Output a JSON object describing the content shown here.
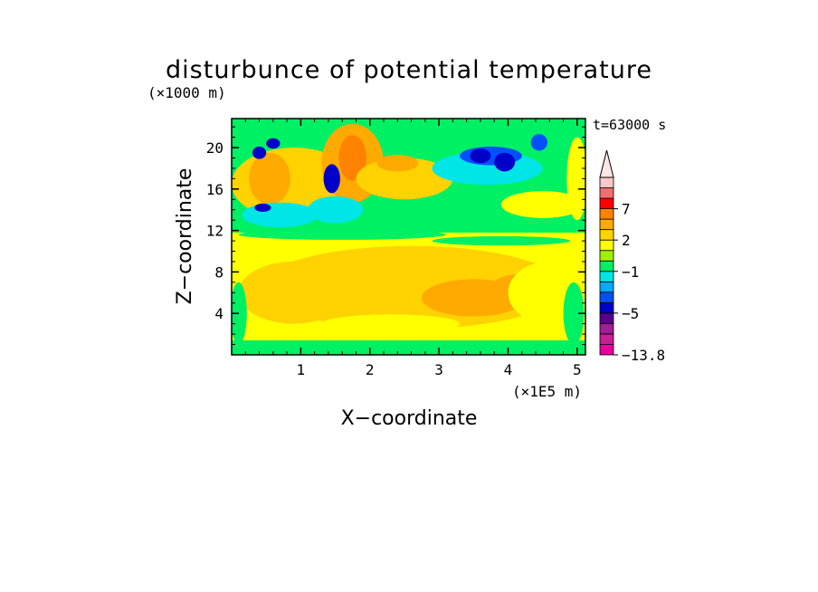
{
  "chart_data": {
    "type": "heatmap",
    "title": "disturbunce of potential temperature",
    "xlabel": "X−coordinate",
    "ylabel": "Z−coordinate",
    "x_unit": "(×1E5 m)",
    "y_unit": "(×1000 m)",
    "time_label": "t=63000 s",
    "x_ticks": [
      1,
      2,
      3,
      4,
      5
    ],
    "y_ticks": [
      4,
      8,
      12,
      16,
      20
    ],
    "xlim": [
      0,
      5.12
    ],
    "ylim": [
      0,
      22.8
    ],
    "colorbar": {
      "labels": [
        "7",
        "2",
        "−1",
        "−5",
        "−13.8"
      ],
      "label_values": [
        7,
        2,
        -1,
        -5,
        -13.8
      ],
      "levels": [
        -13.8,
        -11,
        -9,
        -7,
        -5,
        -4,
        -3,
        -2,
        -1,
        0,
        1,
        2,
        3,
        5,
        7,
        9,
        11
      ],
      "colors": [
        "#e600a0",
        "#c81e96",
        "#a01e96",
        "#5a008c",
        "#0000c8",
        "#0050ff",
        "#00aaff",
        "#00e6e6",
        "#00f064",
        "#a0f000",
        "#ffff00",
        "#ffd200",
        "#ffaa00",
        "#ff8200",
        "#ff0000",
        "#f06e6e",
        "#fac8c8"
      ],
      "extend": "max"
    },
    "fields": {
      "background_level": 0.2,
      "regions": [
        {
          "shape": "rect",
          "x": [
            0,
            5.12
          ],
          "y": [
            0,
            1.4
          ],
          "value": -0.5
        },
        {
          "shape": "rect",
          "x": [
            0,
            5.12
          ],
          "y": [
            1.4,
            11.8
          ],
          "value": 1.5
        },
        {
          "shape": "rect",
          "x": [
            0,
            5.12
          ],
          "y": [
            11.8,
            22.8
          ],
          "value": -0.5
        },
        {
          "shape": "ellipse",
          "cx": 2.6,
          "cy": 6.5,
          "rx": 2.2,
          "ry": 4.0,
          "value": 2.5
        },
        {
          "shape": "ellipse",
          "cx": 0.9,
          "cy": 6.0,
          "rx": 0.8,
          "ry": 3.0,
          "value": 2.5
        },
        {
          "shape": "ellipse",
          "cx": 3.5,
          "cy": 5.5,
          "rx": 0.75,
          "ry": 1.8,
          "value": 4.0
        },
        {
          "shape": "ellipse",
          "cx": 4.2,
          "cy": 6.5,
          "rx": 0.45,
          "ry": 1.3,
          "value": 3.5
        },
        {
          "shape": "ellipse",
          "cx": 2.3,
          "cy": 3.0,
          "rx": 1.0,
          "ry": 0.9,
          "value": 1.5
        },
        {
          "shape": "ellipse",
          "cx": 1.6,
          "cy": 11.6,
          "rx": 1.5,
          "ry": 0.5,
          "value": -0.5
        },
        {
          "shape": "ellipse",
          "cx": 3.9,
          "cy": 11.0,
          "rx": 1.0,
          "ry": 0.45,
          "value": -0.5
        },
        {
          "shape": "ellipse",
          "cx": 0.9,
          "cy": 16.5,
          "rx": 0.9,
          "ry": 3.5,
          "value": 2.5
        },
        {
          "shape": "ellipse",
          "cx": 0.55,
          "cy": 17.0,
          "rx": 0.3,
          "ry": 2.5,
          "value": 4.0
        },
        {
          "shape": "ellipse",
          "cx": 1.75,
          "cy": 18.5,
          "rx": 0.45,
          "ry": 3.8,
          "value": 3.5
        },
        {
          "shape": "ellipse",
          "cx": 1.75,
          "cy": 19.0,
          "rx": 0.2,
          "ry": 2.2,
          "value": 6.0
        },
        {
          "shape": "ellipse",
          "cx": 2.5,
          "cy": 17.0,
          "rx": 0.7,
          "ry": 2.0,
          "value": 2.5
        },
        {
          "shape": "ellipse",
          "cx": 2.4,
          "cy": 18.5,
          "rx": 0.3,
          "ry": 0.8,
          "value": 4.0
        },
        {
          "shape": "ellipse",
          "cx": 0.7,
          "cy": 13.5,
          "rx": 0.55,
          "ry": 1.2,
          "value": -1.5
        },
        {
          "shape": "ellipse",
          "cx": 1.5,
          "cy": 14.0,
          "rx": 0.4,
          "ry": 1.3,
          "value": -1.5
        },
        {
          "shape": "ellipse",
          "cx": 3.7,
          "cy": 18.0,
          "rx": 0.8,
          "ry": 1.6,
          "value": -1.5
        },
        {
          "shape": "ellipse",
          "cx": 3.75,
          "cy": 19.2,
          "rx": 0.45,
          "ry": 0.9,
          "value": -3.5
        },
        {
          "shape": "ellipse",
          "cx": 4.45,
          "cy": 20.5,
          "rx": 0.12,
          "ry": 0.8,
          "value": -3.5
        },
        {
          "shape": "ellipse",
          "cx": 1.45,
          "cy": 17.0,
          "rx": 0.12,
          "ry": 1.4,
          "value": -4.5
        },
        {
          "shape": "ellipse",
          "cx": 0.4,
          "cy": 19.5,
          "rx": 0.1,
          "ry": 0.6,
          "value": -4.5
        },
        {
          "shape": "ellipse",
          "cx": 0.6,
          "cy": 20.4,
          "rx": 0.1,
          "ry": 0.5,
          "value": -4.5
        },
        {
          "shape": "ellipse",
          "cx": 0.45,
          "cy": 14.2,
          "rx": 0.12,
          "ry": 0.4,
          "value": -4.5
        },
        {
          "shape": "ellipse",
          "cx": 3.6,
          "cy": 19.2,
          "rx": 0.15,
          "ry": 0.7,
          "value": -4.5
        },
        {
          "shape": "ellipse",
          "cx": 3.95,
          "cy": 18.6,
          "rx": 0.15,
          "ry": 0.9,
          "value": -4.5
        },
        {
          "shape": "ellipse",
          "cx": 4.6,
          "cy": 6.0,
          "rx": 0.6,
          "ry": 3.0,
          "value": 1.5
        },
        {
          "shape": "ellipse",
          "cx": 4.95,
          "cy": 4.0,
          "rx": 0.15,
          "ry": 3.0,
          "value": -0.5
        },
        {
          "shape": "ellipse",
          "cx": 0.1,
          "cy": 4.0,
          "rx": 0.12,
          "ry": 3.0,
          "value": -0.5
        },
        {
          "shape": "ellipse",
          "cx": 5.0,
          "cy": 17.0,
          "rx": 0.15,
          "ry": 4.0,
          "value": 1.5
        },
        {
          "shape": "ellipse",
          "cx": 4.5,
          "cy": 14.5,
          "rx": 0.6,
          "ry": 1.3,
          "value": 1.5
        }
      ]
    }
  }
}
